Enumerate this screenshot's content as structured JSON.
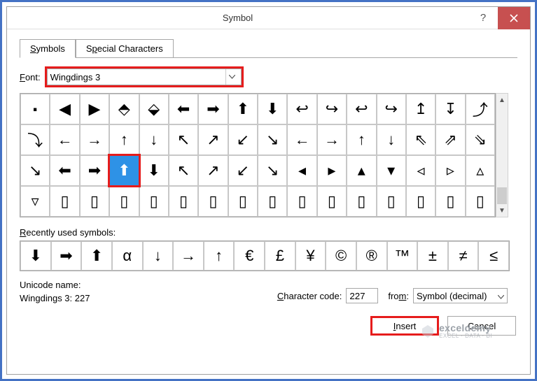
{
  "titlebar": {
    "title": "Symbol"
  },
  "tabs": {
    "symbols": "Symbols",
    "special": "Special Characters"
  },
  "font": {
    "label": "Font:",
    "value": "Wingdings 3"
  },
  "grid": {
    "selected_index": 35,
    "cells": [
      "⬝",
      "◀",
      "▶",
      "⬘",
      "⬙",
      "⬅",
      "➡",
      "⬆",
      "⬇",
      "↩",
      "↪",
      "↩",
      "↪",
      "↥",
      "↧",
      "⤴",
      "⤵",
      "←",
      "→",
      "↑",
      "↓",
      "↖",
      "↗",
      "↙",
      "↘",
      "←",
      "→",
      "↑",
      "↓",
      "⇖",
      "⇗",
      "⇘",
      "↘",
      "⬅",
      "➡",
      "⬆",
      "⬇",
      "↖",
      "↗",
      "↙",
      "↘",
      "◂",
      "▸",
      "▴",
      "▾",
      "◃",
      "▹",
      "▵",
      "▿",
      "▯",
      "▯",
      "▯",
      "▯",
      "▯",
      "▯",
      "▯",
      "▯",
      "▯",
      "▯",
      "▯",
      "▯",
      "▯",
      "▯",
      "▯"
    ]
  },
  "recent": {
    "label": "Recently used symbols:",
    "cells": [
      "⬇",
      "➡",
      "⬆",
      "α",
      "↓",
      "→",
      "↑",
      "€",
      "£",
      "¥",
      "©",
      "®",
      "™",
      "±",
      "≠",
      "≤"
    ]
  },
  "unicode": {
    "label": "Unicode name:",
    "name": "Wingdings 3: 227"
  },
  "charcode": {
    "label": "Character code:",
    "value": "227"
  },
  "from": {
    "label": "from:",
    "value": "Symbol (decimal)"
  },
  "buttons": {
    "insert": "Insert",
    "cancel": "Cancel"
  },
  "colors": {
    "highlight": "#e61c1c",
    "selected_bg": "#2e92e6",
    "close_bg": "#c75050",
    "border": "#a7a7a7",
    "outer": "#4472c4"
  },
  "watermark": {
    "main": "exceldemy",
    "sub": "EXCEL · DATA · BI"
  }
}
